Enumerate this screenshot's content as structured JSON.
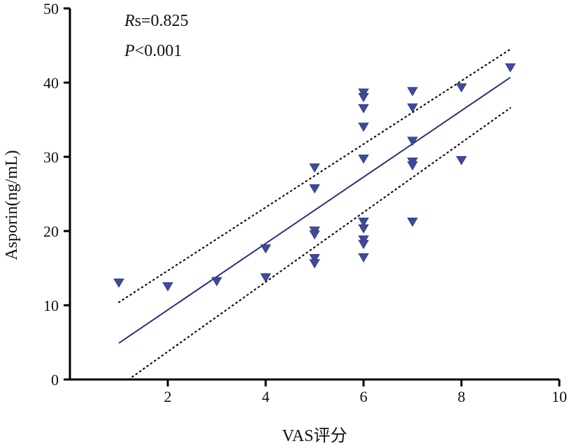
{
  "chart_data": {
    "type": "scatter",
    "xlabel": "VAS评分",
    "ylabel": "Asporin(ng/mL)",
    "xlim": [
      0,
      10
    ],
    "ylim": [
      0,
      50
    ],
    "xticks": [
      2,
      4,
      6,
      8,
      10
    ],
    "yticks": [
      0,
      10,
      20,
      30,
      40,
      50
    ],
    "marker": "inverted-triangle",
    "marker_color": "#3f4a9a",
    "line_color": "#2b2f7a",
    "annotations": {
      "rs_label": "R",
      "rs_value": "s=0.825",
      "p_label": "P",
      "p_value": "<0.001"
    },
    "points": [
      {
        "x": 1,
        "y": 13.0
      },
      {
        "x": 2,
        "y": 12.5
      },
      {
        "x": 3,
        "y": 13.2
      },
      {
        "x": 4,
        "y": 17.6
      },
      {
        "x": 4,
        "y": 13.7
      },
      {
        "x": 5,
        "y": 28.5
      },
      {
        "x": 5,
        "y": 25.7
      },
      {
        "x": 5,
        "y": 20.0
      },
      {
        "x": 5,
        "y": 19.5
      },
      {
        "x": 5,
        "y": 16.3
      },
      {
        "x": 5,
        "y": 15.6
      },
      {
        "x": 6,
        "y": 38.6
      },
      {
        "x": 6,
        "y": 38.0
      },
      {
        "x": 6,
        "y": 36.5
      },
      {
        "x": 6,
        "y": 34.0
      },
      {
        "x": 6,
        "y": 29.7
      },
      {
        "x": 6,
        "y": 21.2
      },
      {
        "x": 6,
        "y": 20.3
      },
      {
        "x": 6,
        "y": 18.8
      },
      {
        "x": 6,
        "y": 18.2
      },
      {
        "x": 6,
        "y": 16.4
      },
      {
        "x": 7,
        "y": 38.8
      },
      {
        "x": 7,
        "y": 36.6
      },
      {
        "x": 7,
        "y": 32.1
      },
      {
        "x": 7,
        "y": 29.3
      },
      {
        "x": 7,
        "y": 28.8
      },
      {
        "x": 7,
        "y": 21.2
      },
      {
        "x": 8,
        "y": 39.3
      },
      {
        "x": 8,
        "y": 29.5
      },
      {
        "x": 9,
        "y": 42.0
      }
    ],
    "fit_line": {
      "x": [
        1,
        9
      ],
      "y": [
        4.9,
        40.7
      ]
    },
    "ci_upper": {
      "x": [
        1,
        9
      ],
      "y": [
        10.4,
        44.5
      ]
    },
    "ci_lower": {
      "x": [
        1.2,
        9
      ],
      "y": [
        0.0,
        36.6
      ]
    }
  }
}
